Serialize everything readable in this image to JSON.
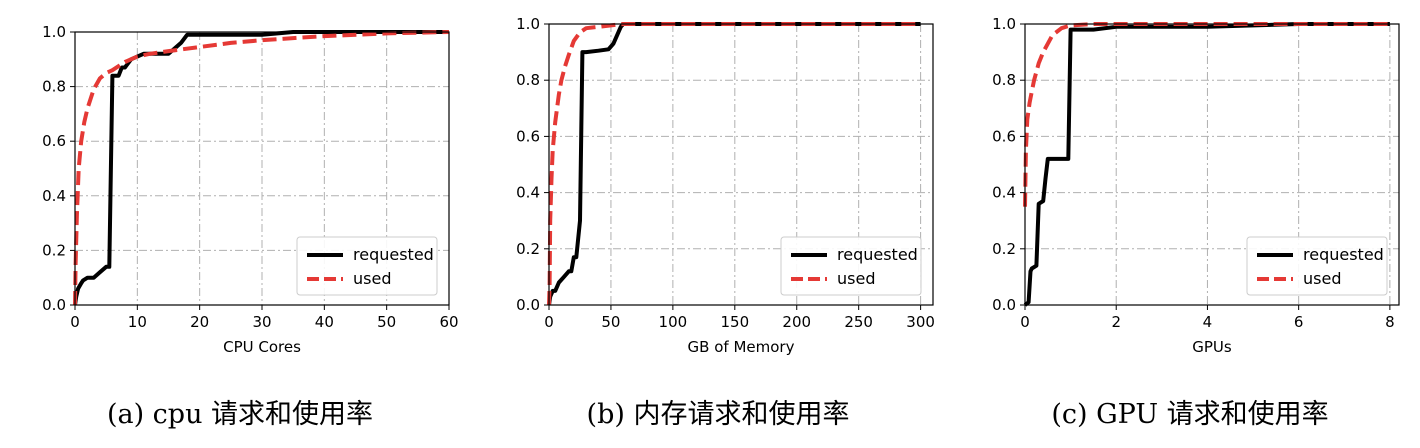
{
  "chart_data": [
    {
      "type": "line",
      "xlabel": "CPU Cores",
      "ylabel": "",
      "xlim": [
        0,
        60
      ],
      "ylim": [
        0,
        1.0
      ],
      "xticks": [
        0,
        10,
        20,
        30,
        40,
        50,
        60
      ],
      "yticks": [
        0.0,
        0.2,
        0.4,
        0.6,
        0.8,
        1.0
      ],
      "ytick_labels": [
        "0.0",
        "0.2",
        "0.4",
        "0.6",
        "0.8",
        "1.0"
      ],
      "grid": true,
      "legend_position": "lower-right",
      "caption": "(a) cpu 请求和使用率",
      "series": [
        {
          "name": "requested",
          "color": "#000000",
          "style": "solid",
          "x": [
            0,
            0.2,
            0.5,
            1,
            1.3,
            2,
            3,
            4,
            5,
            5.5,
            6,
            7,
            7.5,
            8,
            9,
            10,
            11,
            12,
            15,
            16,
            17,
            18,
            20,
            25,
            30,
            35,
            40,
            50,
            60
          ],
          "y": [
            0,
            0.03,
            0.06,
            0.08,
            0.09,
            0.1,
            0.1,
            0.12,
            0.14,
            0.14,
            0.84,
            0.84,
            0.87,
            0.87,
            0.9,
            0.91,
            0.92,
            0.92,
            0.92,
            0.94,
            0.96,
            0.99,
            0.99,
            0.99,
            0.99,
            1.0,
            1.0,
            1.0,
            1.0
          ]
        },
        {
          "name": "used",
          "color": "#e53935",
          "style": "dashed",
          "x": [
            0,
            0.1,
            0.3,
            0.6,
            1,
            1.5,
            2,
            3,
            4,
            5,
            6,
            8,
            10,
            12,
            15,
            20,
            25,
            30,
            40,
            50,
            60
          ],
          "y": [
            0,
            0.15,
            0.33,
            0.5,
            0.6,
            0.67,
            0.72,
            0.79,
            0.83,
            0.85,
            0.86,
            0.89,
            0.91,
            0.92,
            0.93,
            0.945,
            0.96,
            0.97,
            0.985,
            0.995,
            1.0
          ]
        }
      ]
    },
    {
      "type": "line",
      "xlabel": "GB of Memory",
      "ylabel": "",
      "xlim": [
        0,
        310
      ],
      "ylim": [
        0,
        1.0
      ],
      "xticks": [
        0,
        50,
        100,
        150,
        200,
        250,
        300
      ],
      "yticks": [
        0.0,
        0.2,
        0.4,
        0.6,
        0.8,
        1.0
      ],
      "ytick_labels": [
        "0.0",
        "0.2",
        "0.4",
        "0.6",
        "0.8",
        "1.0"
      ],
      "grid": true,
      "legend_position": "lower-right",
      "caption": "(b) 内存请求和使用率",
      "series": [
        {
          "name": "requested",
          "color": "#000000",
          "style": "solid",
          "x": [
            0,
            1,
            3,
            5,
            8,
            12,
            16,
            18,
            20,
            22,
            25,
            27,
            30,
            40,
            48,
            52,
            58,
            60,
            100,
            150,
            200,
            250,
            300
          ],
          "y": [
            0,
            0.03,
            0.05,
            0.05,
            0.08,
            0.1,
            0.12,
            0.12,
            0.17,
            0.17,
            0.3,
            0.9,
            0.9,
            0.905,
            0.91,
            0.93,
            0.99,
            1.0,
            1.0,
            1.0,
            1.0,
            1.0,
            1.0
          ]
        },
        {
          "name": "used",
          "color": "#e53935",
          "style": "dashed",
          "x": [
            0,
            0.5,
            1,
            2,
            3,
            5,
            8,
            10,
            13,
            16,
            20,
            25,
            30,
            40,
            50,
            60,
            100,
            150,
            200,
            250,
            300
          ],
          "y": [
            0,
            0.07,
            0.3,
            0.45,
            0.55,
            0.65,
            0.75,
            0.8,
            0.85,
            0.89,
            0.94,
            0.97,
            0.985,
            0.99,
            0.995,
            1.0,
            1.0,
            1.0,
            1.0,
            1.0,
            1.0
          ]
        }
      ]
    },
    {
      "type": "line",
      "xlabel": "GPUs",
      "ylabel": "",
      "xlim": [
        0,
        8.2
      ],
      "ylim": [
        0,
        1.0
      ],
      "xticks": [
        0,
        2,
        4,
        6,
        8
      ],
      "yticks": [
        0.0,
        0.2,
        0.4,
        0.6,
        0.8,
        1.0
      ],
      "ytick_labels": [
        "0.0",
        "0.2",
        "0.4",
        "0.6",
        "0.8",
        "1.0"
      ],
      "grid": true,
      "legend_position": "lower-right",
      "caption": "(c) GPU 请求和使用率",
      "series": [
        {
          "name": "requested",
          "color": "#000000",
          "style": "solid",
          "x": [
            0,
            0.08,
            0.12,
            0.15,
            0.25,
            0.3,
            0.4,
            0.45,
            0.5,
            0.75,
            0.95,
            1.0,
            1.5,
            2.0,
            4,
            6,
            8
          ],
          "y": [
            0,
            0.01,
            0.12,
            0.13,
            0.14,
            0.36,
            0.37,
            0.45,
            0.52,
            0.52,
            0.52,
            0.98,
            0.98,
            0.99,
            0.99,
            1.0,
            1.0
          ]
        },
        {
          "name": "used",
          "color": "#e53935",
          "style": "dashed",
          "x": [
            0,
            0.02,
            0.05,
            0.1,
            0.15,
            0.2,
            0.3,
            0.4,
            0.5,
            0.6,
            0.8,
            1.0,
            1.5,
            2,
            4,
            6,
            8
          ],
          "y": [
            0.35,
            0.55,
            0.66,
            0.72,
            0.76,
            0.8,
            0.86,
            0.9,
            0.93,
            0.96,
            0.985,
            0.995,
            1.0,
            1.0,
            1.0,
            1.0,
            1.0
          ]
        }
      ]
    }
  ]
}
